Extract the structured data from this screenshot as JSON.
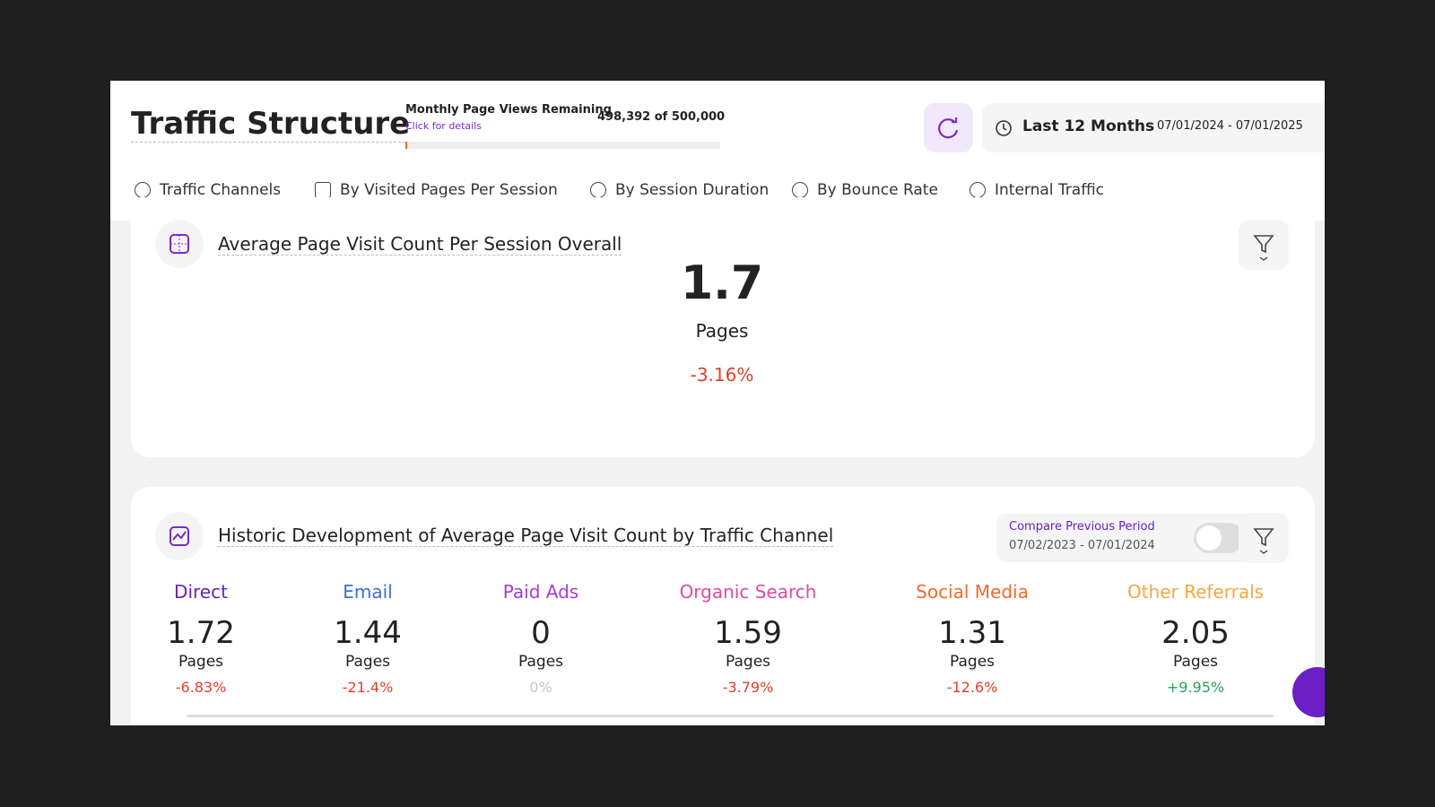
{
  "header": {
    "title": "Traffic Structure",
    "quota": {
      "label": "Monthly Page Views Remaining",
      "link": "Click for details",
      "remaining": "498,392",
      "of": "of",
      "total": "500,000"
    },
    "date_range": {
      "label": "Last 12 Months",
      "dates": "07/01/2024 - 07/01/2025"
    }
  },
  "tabs": [
    "Traffic Channels",
    "By Visited Pages Per Session",
    "By Session Duration",
    "By Bounce Rate",
    "Internal Traffic"
  ],
  "overall": {
    "title": "Average Page Visit Count Per Session Overall",
    "value": "1.7",
    "unit": "Pages",
    "change": "-3.16%"
  },
  "historic": {
    "title": "Historic Development of Average Page Visit Count by Traffic Channel",
    "compare": {
      "label": "Compare Previous Period",
      "dates": "07/02/2023 - 07/01/2024"
    },
    "channels": [
      {
        "name": "Direct",
        "color": "#6a1fc4",
        "value": "1.72",
        "unit": "Pages",
        "change": "-6.83%",
        "change_color": "#e0402c"
      },
      {
        "name": "Email",
        "color": "#3b6fd8",
        "value": "1.44",
        "unit": "Pages",
        "change": "-21.4%",
        "change_color": "#e0402c"
      },
      {
        "name": "Paid Ads",
        "color": "#a63bd8",
        "value": "0",
        "unit": "Pages",
        "change": "0%",
        "change_color": "#c4c4c4"
      },
      {
        "name": "Organic Search",
        "color": "#e04aa0",
        "value": "1.59",
        "unit": "Pages",
        "change": "-3.79%",
        "change_color": "#e0402c"
      },
      {
        "name": "Social Media",
        "color": "#f06a2a",
        "value": "1.31",
        "unit": "Pages",
        "change": "-12.6%",
        "change_color": "#e0402c"
      },
      {
        "name": "Other Referrals",
        "color": "#f5a742",
        "value": "2.05",
        "unit": "Pages",
        "change": "+9.95%",
        "change_color": "#2aa05a"
      }
    ]
  }
}
